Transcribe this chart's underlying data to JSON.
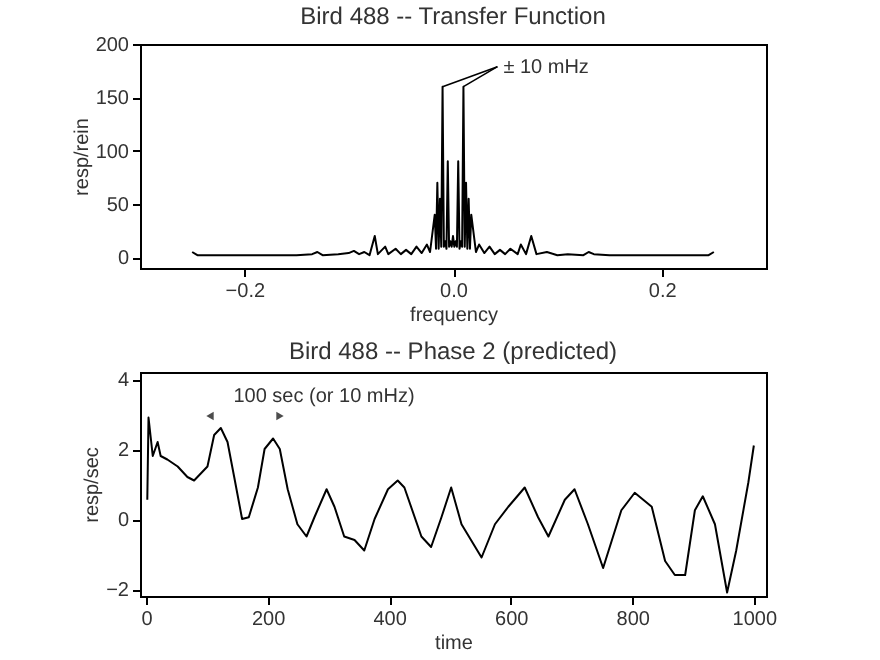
{
  "chart_data": [
    {
      "type": "line",
      "title": "Bird 488 -- Transfer Function",
      "xlabel": "frequency",
      "ylabel": "resp/rein",
      "xlim": [
        -0.3,
        0.3
      ],
      "ylim": [
        -10,
        200
      ],
      "xticks": [
        -0.2,
        {
          "value": 0,
          "label": "0.0"
        },
        0.2
      ],
      "yticks": [
        0,
        50,
        100,
        150,
        200
      ],
      "annotations": [
        {
          "text": "± 10 mHz",
          "x": 0.01,
          "y": 160
        }
      ],
      "series": [
        {
          "color": "#000000",
          "x": [
            -0.25,
            -0.245,
            -0.23,
            -0.2,
            -0.17,
            -0.15,
            -0.135,
            -0.13,
            -0.125,
            -0.11,
            -0.1,
            -0.095,
            -0.09,
            -0.085,
            -0.08,
            -0.075,
            -0.072,
            -0.065,
            -0.062,
            -0.055,
            -0.05,
            -0.045,
            -0.04,
            -0.035,
            -0.03,
            -0.025,
            -0.022,
            -0.0175,
            -0.01625,
            -0.015,
            -0.01375,
            -0.0125,
            -0.01125,
            -0.01,
            -0.00875,
            -0.0075,
            -0.00625,
            -0.005,
            -0.00375,
            -0.0025,
            -0.00125,
            0,
            0.00125,
            0.0025,
            0.00375,
            0.005,
            0.00625,
            0.0075,
            0.00875,
            0.01,
            0.01125,
            0.0125,
            0.01375,
            0.015,
            0.01625,
            0.0175,
            0.022,
            0.025,
            0.03,
            0.035,
            0.04,
            0.045,
            0.05,
            0.055,
            0.062,
            0.065,
            0.07,
            0.075,
            0.08,
            0.09,
            0.1,
            0.11,
            0.125,
            0.13,
            0.135,
            0.15,
            0.17,
            0.2,
            0.23,
            0.245,
            0.25
          ],
          "values": [
            5,
            2,
            2,
            2,
            2,
            2,
            3,
            5,
            2,
            3,
            4,
            6,
            3,
            5,
            2,
            20,
            3,
            10,
            3,
            8,
            3,
            7,
            3,
            10,
            4,
            12,
            5,
            40,
            8,
            70,
            8,
            55,
            10,
            160,
            10,
            15,
            8,
            90,
            10,
            15,
            10,
            20,
            10,
            15,
            10,
            90,
            8,
            15,
            10,
            160,
            10,
            70,
            8,
            55,
            8,
            40,
            5,
            12,
            4,
            10,
            3,
            7,
            3,
            8,
            3,
            12,
            3,
            20,
            3,
            5,
            2,
            3,
            2,
            5,
            3,
            2,
            2,
            2,
            2,
            2,
            5
          ]
        }
      ]
    },
    {
      "type": "line",
      "title": "Bird 488 -- Phase 2 (predicted)",
      "xlabel": "time",
      "ylabel": "resp/sec",
      "xlim": [
        -10,
        1020
      ],
      "ylim": [
        -2.2,
        4.2
      ],
      "xticks": [
        0,
        200,
        400,
        600,
        800,
        {
          "value": 1000,
          "label": "1000"
        }
      ],
      "yticks": [
        -2,
        0,
        2,
        4
      ],
      "annotations": [
        "100 sec (or 10 mHz)"
      ],
      "series": [
        {
          "color": "#000000",
          "x": [
            2,
            4,
            11,
            19,
            24,
            35,
            52,
            68,
            79,
            90,
            101,
            112,
            123,
            134,
            145,
            158,
            169,
            184,
            195,
            209,
            220,
            233,
            249,
            264,
            277,
            297,
            310,
            326,
            343,
            359,
            376,
            398,
            414,
            425,
            453,
            469,
            486,
            502,
            519,
            552,
            574,
            596,
            623,
            645,
            662,
            689,
            705,
            727,
            752,
            782,
            804,
            832,
            854,
            870,
            887,
            903,
            916,
            936,
            956,
            971,
            991,
            1000
          ],
          "values": [
            0.55,
            2.9,
            1.8,
            2.2,
            1.8,
            1.7,
            1.5,
            1.2,
            1.1,
            1.3,
            1.5,
            2.4,
            2.6,
            2.2,
            1.2,
            0,
            0.05,
            0.9,
            2.0,
            2.3,
            2.0,
            0.85,
            -0.15,
            -0.5,
            0.05,
            0.85,
            0.35,
            -0.5,
            -0.6,
            -0.9,
            0,
            0.85,
            1.1,
            0.9,
            -0.5,
            -0.8,
            0.05,
            0.9,
            -0.15,
            -1.1,
            -0.15,
            0.35,
            0.9,
            0.05,
            -0.5,
            0.55,
            0.85,
            -0.15,
            -1.4,
            0.25,
            0.75,
            0.35,
            -1.2,
            -1.6,
            -1.6,
            0.25,
            0.65,
            -0.15,
            -2.1,
            -0.9,
            1.05,
            2.1
          ]
        }
      ]
    }
  ]
}
